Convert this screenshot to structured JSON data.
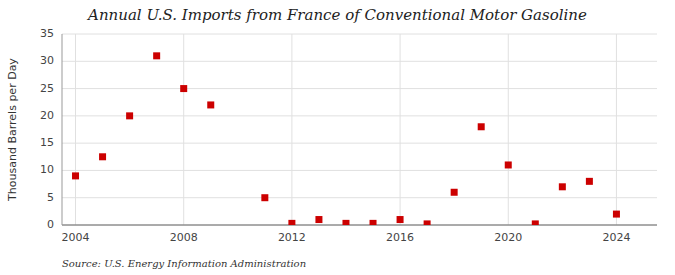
{
  "chart_data": {
    "type": "scatter",
    "title": "Annual U.S. Imports from France of Conventional Motor Gasoline",
    "ylabel": "Thousand Barrels per Day",
    "annotation": "Source: U.S. Energy Information Administration",
    "x": [
      2004,
      2005,
      2006,
      2007,
      2008,
      2009,
      2011,
      2012,
      2013,
      2014,
      2015,
      2016,
      2017,
      2018,
      2019,
      2020,
      2021,
      2022,
      2023,
      2024
    ],
    "values": [
      9.0,
      12.5,
      20.0,
      31.0,
      25.0,
      22.0,
      5.0,
      0.3,
      1.0,
      0.3,
      0.3,
      1.0,
      0.2,
      6.0,
      18.0,
      11.0,
      0.2,
      7.0,
      8.0,
      2.0
    ],
    "color": "#cc0000",
    "marker": "square",
    "xlim": [
      2003.5,
      2025.5
    ],
    "ylim": [
      0,
      35
    ],
    "xticks": [
      2004,
      2008,
      2012,
      2016,
      2020,
      2024
    ],
    "yticks": [
      0,
      5,
      10,
      15,
      20,
      25,
      30,
      35
    ],
    "grid": true
  }
}
